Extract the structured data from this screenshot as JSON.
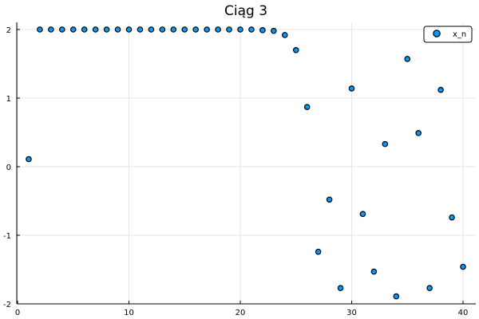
{
  "chart_data": {
    "type": "scatter",
    "title": "Ciąg 3",
    "xlabel": "",
    "ylabel": "",
    "xlim": [
      0,
      41
    ],
    "ylim": [
      -2,
      2.1
    ],
    "xticks": [
      0,
      10,
      20,
      30,
      40
    ],
    "yticks": [
      -2,
      -1,
      0,
      1,
      2
    ],
    "xtick_labels": [
      "0",
      "10",
      "20",
      "30",
      "40"
    ],
    "ytick_labels": [
      "-2",
      "-1",
      "0",
      "1",
      "2"
    ],
    "grid": true,
    "legend_position": "top-right",
    "marker_color": "#009AFA",
    "series": [
      {
        "name": "x_n",
        "x": [
          1,
          2,
          3,
          4,
          5,
          6,
          7,
          8,
          9,
          10,
          11,
          12,
          13,
          14,
          15,
          16,
          17,
          18,
          19,
          20,
          21,
          22,
          23,
          24,
          25,
          26,
          27,
          28,
          29,
          30,
          31,
          32,
          33,
          34,
          35,
          36,
          37,
          38,
          39,
          40
        ],
        "y": [
          0.11,
          2.0,
          2.0,
          2.0,
          2.0,
          2.0,
          2.0,
          2.0,
          2.0,
          2.0,
          2.0,
          2.0,
          2.0,
          2.0,
          2.0,
          2.0,
          2.0,
          2.0,
          2.0,
          2.0,
          2.0,
          1.99,
          1.98,
          1.92,
          1.7,
          0.87,
          -1.24,
          -0.48,
          -1.77,
          1.14,
          -0.69,
          -1.53,
          0.33,
          -1.89,
          1.57,
          0.49,
          -1.77,
          1.12,
          -0.74,
          -1.46
        ]
      }
    ]
  }
}
